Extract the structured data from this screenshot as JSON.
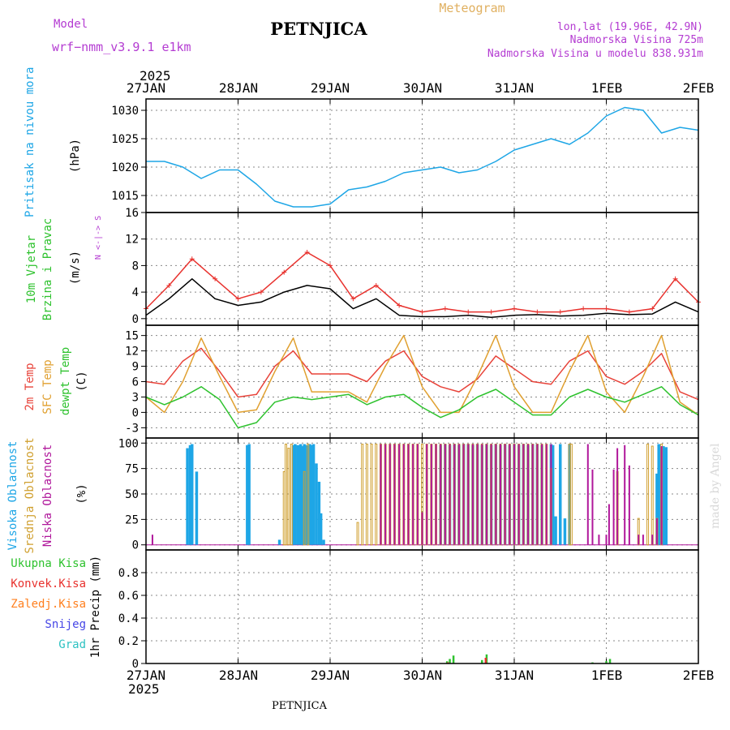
{
  "header": {
    "model_label": "Model",
    "model_name": "wrf−nmm_v3.9.1  e1km",
    "station": "PETNJICA",
    "product": "Meteogram",
    "coords": "lon,lat (19.96E, 42.9N)",
    "elevation": "Nadmorska Visina 725m",
    "model_elevation": "Nadmorska Visina u modelu 838.931m",
    "year": "2025"
  },
  "footer": {
    "year": "2025",
    "station": "PETNJICA",
    "watermark": "made by Angel"
  },
  "x_axis": {
    "labels": [
      "27JAN",
      "28JAN",
      "29JAN",
      "30JAN",
      "31JAN",
      "1FEB",
      "2FEB"
    ]
  },
  "colors": {
    "pressure": "#1ea6e6",
    "wind_speed": "#000000",
    "gust": "#e8322e",
    "temp2m": "#e8433a",
    "sfc_temp": "#e0a030",
    "dewpoint": "#2ec22e",
    "high_cloud": "#1ea6e6",
    "mid_cloud": "#d0a030",
    "low_cloud": "#b0179b",
    "total_precip": "#2ec22e",
    "conv_precip": "#e8322e",
    "frz_rain": "#ff7f1e",
    "snow": "#4646e6",
    "hail": "#2ec2c2",
    "label_magenta": "#b43cd2",
    "label_gold": "#e0b060"
  },
  "chart_data": [
    {
      "type": "line",
      "panel": "pressure",
      "title_lines": [
        "Pritisak na nivou mora"
      ],
      "ylabel": "(hPa)",
      "ylim": [
        1012,
        1032
      ],
      "yticks": [
        1015,
        1020,
        1025,
        1030
      ],
      "grid": true,
      "x_days": [
        0,
        0.2,
        0.4,
        0.6,
        0.8,
        1.0,
        1.2,
        1.4,
        1.6,
        1.8,
        2.0,
        2.2,
        2.4,
        2.6,
        2.8,
        3.0,
        3.2,
        3.4,
        3.6,
        3.8,
        4.0,
        4.2,
        4.4,
        4.6,
        4.8,
        5.0,
        5.2,
        5.4,
        5.6,
        5.8,
        6.0
      ],
      "series": [
        {
          "values": [
            1021,
            1021,
            1020,
            1018,
            1019.5,
            1019.5,
            1017,
            1014,
            1013,
            1013,
            1013.5,
            1016,
            1016.5,
            1017.5,
            1019,
            1019.5,
            1020,
            1019,
            1019.5,
            1021,
            1023,
            1024,
            1025,
            1024,
            1026,
            1029,
            1030.5,
            1030,
            1026,
            1027,
            1026.5
          ]
        }
      ]
    },
    {
      "type": "line",
      "panel": "wind",
      "title_lines": [
        "10m Vjetar",
        "Brzina i Pravac"
      ],
      "ylabel": "(m/s)",
      "direction_legend": "N <-|-> S",
      "ylim": [
        -1,
        16
      ],
      "yticks": [
        0,
        4,
        8,
        12,
        16
      ],
      "grid": true,
      "x_days": [
        0,
        0.25,
        0.5,
        0.75,
        1.0,
        1.25,
        1.5,
        1.75,
        2.0,
        2.25,
        2.5,
        2.75,
        3.0,
        3.25,
        3.5,
        3.75,
        4.0,
        4.25,
        4.5,
        4.75,
        5.0,
        5.25,
        5.5,
        5.75,
        6.0
      ],
      "series": [
        {
          "values": [
            0.5,
            3,
            6,
            3,
            2,
            2.5,
            4,
            5,
            4.5,
            1.5,
            3,
            0.5,
            0.3,
            0.3,
            0.5,
            0.2,
            0.5,
            0.6,
            0.4,
            0.5,
            0.8,
            0.6,
            0.7,
            2.5,
            1
          ]
        },
        {
          "values": [
            1.5,
            5,
            9,
            6,
            3,
            4,
            7,
            10,
            8,
            3,
            5,
            2,
            1,
            1.5,
            1,
            1,
            1.5,
            1,
            1,
            1.5,
            1.5,
            1,
            1.5,
            6,
            2.5
          ]
        }
      ]
    },
    {
      "type": "line",
      "panel": "temperature",
      "title_lines": [
        "2m Temp",
        "SFC Temp",
        "dewpt Temp"
      ],
      "ylabel": "(C)",
      "ylim": [
        -5,
        17
      ],
      "yticks": [
        -3,
        0,
        3,
        6,
        9,
        12,
        15
      ],
      "grid": true,
      "x_days": [
        0,
        0.2,
        0.4,
        0.6,
        0.8,
        1.0,
        1.2,
        1.4,
        1.6,
        1.8,
        2.0,
        2.2,
        2.4,
        2.6,
        2.8,
        3.0,
        3.2,
        3.4,
        3.6,
        3.8,
        4.0,
        4.2,
        4.4,
        4.6,
        4.8,
        5.0,
        5.2,
        5.4,
        5.6,
        5.8,
        6.0
      ],
      "series": [
        {
          "name": "2m Temp",
          "values": [
            6,
            5.5,
            10,
            12.5,
            8,
            3,
            3.5,
            9,
            12,
            7.5,
            7.5,
            7.5,
            6,
            10,
            12,
            7,
            5,
            4,
            6.5,
            11,
            8.5,
            6,
            5.5,
            10,
            12,
            7,
            5.5,
            8,
            11.5,
            4,
            2.5
          ]
        },
        {
          "name": "SFC Temp",
          "values": [
            3,
            0,
            6,
            14.5,
            7,
            0,
            0.5,
            8,
            14.5,
            4,
            4,
            4,
            2,
            9,
            15,
            5,
            0,
            0,
            7,
            15,
            5,
            0,
            0,
            8,
            15,
            4,
            0,
            7,
            15,
            2,
            -0.5
          ]
        },
        {
          "name": "dewpt Temp",
          "values": [
            3,
            1.5,
            3,
            5,
            2.5,
            -3,
            -2,
            2,
            3,
            2.5,
            3,
            3.5,
            1.5,
            3,
            3.5,
            1,
            -1,
            0.5,
            3,
            4.5,
            2,
            -0.5,
            -0.5,
            3,
            4.5,
            3,
            2,
            3.5,
            5,
            1.5,
            -0.5
          ]
        }
      ]
    },
    {
      "type": "bar",
      "panel": "clouds",
      "title_lines": [
        "Visoka Oblacnost",
        "Srednja Oblacnost",
        "Niska Oblacnost"
      ],
      "ylabel": "(%)",
      "ylim": [
        -5,
        105
      ],
      "yticks": [
        0,
        25,
        50,
        75,
        100
      ],
      "grid": true,
      "series": [
        {
          "name": "Visoka Oblacnost",
          "points": [
            [
              0.45,
              95
            ],
            [
              0.48,
              98
            ],
            [
              0.5,
              99
            ],
            [
              0.55,
              72
            ],
            [
              1.1,
              98
            ],
            [
              1.12,
              99
            ],
            [
              1.45,
              5
            ],
            [
              1.6,
              98
            ],
            [
              1.62,
              99
            ],
            [
              1.65,
              98
            ],
            [
              1.68,
              99
            ],
            [
              1.7,
              97
            ],
            [
              1.72,
              99
            ],
            [
              1.75,
              98
            ],
            [
              1.78,
              99
            ],
            [
              1.8,
              98
            ],
            [
              1.82,
              99
            ],
            [
              1.85,
              80
            ],
            [
              1.88,
              62
            ],
            [
              1.9,
              31
            ],
            [
              1.93,
              5
            ],
            [
              3.2,
              98
            ],
            [
              3.25,
              99
            ],
            [
              3.3,
              98
            ],
            [
              3.35,
              99
            ],
            [
              3.4,
              98
            ],
            [
              3.45,
              99
            ],
            [
              3.5,
              99
            ],
            [
              3.55,
              98
            ],
            [
              3.6,
              99
            ],
            [
              3.65,
              98
            ],
            [
              3.7,
              99
            ],
            [
              3.75,
              98
            ],
            [
              3.8,
              99
            ],
            [
              3.85,
              98
            ],
            [
              3.9,
              99
            ],
            [
              3.95,
              98
            ],
            [
              4.0,
              99
            ],
            [
              4.05,
              98
            ],
            [
              4.1,
              99
            ],
            [
              4.15,
              98
            ],
            [
              4.2,
              99
            ],
            [
              4.25,
              99
            ],
            [
              4.3,
              98
            ],
            [
              4.4,
              99
            ],
            [
              4.42,
              98
            ],
            [
              4.45,
              28
            ],
            [
              4.5,
              99
            ],
            [
              4.55,
              26
            ],
            [
              4.6,
              99
            ],
            [
              5.55,
              70
            ],
            [
              5.57,
              99
            ],
            [
              5.6,
              96
            ],
            [
              5.62,
              97
            ],
            [
              5.65,
              96
            ]
          ]
        },
        {
          "name": "Srednja Oblacnost",
          "points": [
            [
              1.5,
              72
            ],
            [
              1.52,
              99
            ],
            [
              1.55,
              95
            ],
            [
              1.58,
              99
            ],
            [
              1.72,
              72
            ],
            [
              1.76,
              99
            ],
            [
              2.3,
              22
            ],
            [
              2.35,
              99
            ],
            [
              2.4,
              99
            ],
            [
              2.45,
              99
            ],
            [
              2.5,
              99
            ],
            [
              2.55,
              99
            ],
            [
              2.6,
              99
            ],
            [
              2.65,
              99
            ],
            [
              2.7,
              99
            ],
            [
              2.75,
              99
            ],
            [
              2.8,
              99
            ],
            [
              2.85,
              99
            ],
            [
              2.9,
              99
            ],
            [
              2.95,
              99
            ],
            [
              3.0,
              99
            ],
            [
              3.05,
              99
            ],
            [
              3.1,
              99
            ],
            [
              3.15,
              99
            ],
            [
              3.2,
              99
            ],
            [
              3.25,
              99
            ],
            [
              3.3,
              99
            ],
            [
              3.35,
              99
            ],
            [
              3.4,
              99
            ],
            [
              3.45,
              99
            ],
            [
              3.5,
              99
            ],
            [
              3.55,
              99
            ],
            [
              3.6,
              99
            ],
            [
              3.65,
              99
            ],
            [
              3.7,
              99
            ],
            [
              3.75,
              99
            ],
            [
              3.8,
              99
            ],
            [
              3.85,
              99
            ],
            [
              3.9,
              99
            ],
            [
              3.95,
              99
            ],
            [
              4.0,
              99
            ],
            [
              4.05,
              99
            ],
            [
              4.1,
              99
            ],
            [
              4.15,
              99
            ],
            [
              4.2,
              99
            ],
            [
              4.25,
              99
            ],
            [
              4.3,
              99
            ],
            [
              4.35,
              99
            ],
            [
              4.4,
              75
            ],
            [
              4.6,
              99
            ],
            [
              4.62,
              99
            ],
            [
              5.12,
              72
            ],
            [
              5.35,
              26
            ],
            [
              5.45,
              99
            ],
            [
              5.5,
              97
            ],
            [
              5.55,
              26
            ],
            [
              5.6,
              99
            ]
          ]
        },
        {
          "name": "Niska Oblacnost",
          "points": [
            [
              0.07,
              10
            ],
            [
              2.55,
              99
            ],
            [
              2.6,
              99
            ],
            [
              2.65,
              99
            ],
            [
              2.7,
              99
            ],
            [
              2.75,
              99
            ],
            [
              2.8,
              99
            ],
            [
              2.85,
              99
            ],
            [
              2.9,
              99
            ],
            [
              2.95,
              99
            ],
            [
              3.0,
              32
            ],
            [
              3.05,
              99
            ],
            [
              3.1,
              99
            ],
            [
              3.15,
              99
            ],
            [
              3.2,
              99
            ],
            [
              3.25,
              99
            ],
            [
              3.3,
              99
            ],
            [
              3.35,
              99
            ],
            [
              3.4,
              99
            ],
            [
              3.45,
              99
            ],
            [
              3.5,
              99
            ],
            [
              3.55,
              99
            ],
            [
              3.6,
              99
            ],
            [
              3.65,
              99
            ],
            [
              3.7,
              99
            ],
            [
              3.75,
              99
            ],
            [
              3.8,
              99
            ],
            [
              3.85,
              99
            ],
            [
              3.9,
              99
            ],
            [
              3.95,
              99
            ],
            [
              4.0,
              99
            ],
            [
              4.05,
              99
            ],
            [
              4.1,
              99
            ],
            [
              4.15,
              99
            ],
            [
              4.2,
              99
            ],
            [
              4.25,
              99
            ],
            [
              4.3,
              99
            ],
            [
              4.35,
              99
            ],
            [
              4.4,
              99
            ],
            [
              4.8,
              99
            ],
            [
              4.85,
              74
            ],
            [
              4.92,
              10
            ],
            [
              5.0,
              10
            ],
            [
              5.03,
              40
            ],
            [
              5.08,
              74
            ],
            [
              5.12,
              95
            ],
            [
              5.2,
              98
            ],
            [
              5.25,
              78
            ],
            [
              5.35,
              10
            ],
            [
              5.4,
              10
            ],
            [
              5.5,
              10
            ],
            [
              5.55,
              26
            ],
            [
              5.6,
              97
            ]
          ]
        }
      ]
    },
    {
      "type": "bar",
      "panel": "precipitation",
      "legend": [
        "Ukupna Kisa",
        "Konvek.Kisa",
        "Zaledj.Kisa",
        "Snijeg",
        "Grad"
      ],
      "ylabel": "1hr Precip (mm)",
      "ylim": [
        0,
        1.0
      ],
      "yticks": [
        0,
        0.2,
        0.4,
        0.6,
        0.8
      ],
      "grid": true,
      "series": [
        {
          "name": "Ukupna Kisa",
          "points": [
            [
              3.27,
              0.02
            ],
            [
              3.3,
              0.04
            ],
            [
              3.34,
              0.07
            ],
            [
              3.65,
              0.03
            ],
            [
              3.7,
              0.08
            ],
            [
              4.85,
              0.01
            ],
            [
              5.0,
              0.02
            ],
            [
              5.04,
              0.04
            ]
          ]
        },
        {
          "name": "Konvek.Kisa",
          "points": [
            [
              3.28,
              0.01
            ],
            [
              3.69,
              0.05
            ]
          ]
        }
      ]
    }
  ]
}
